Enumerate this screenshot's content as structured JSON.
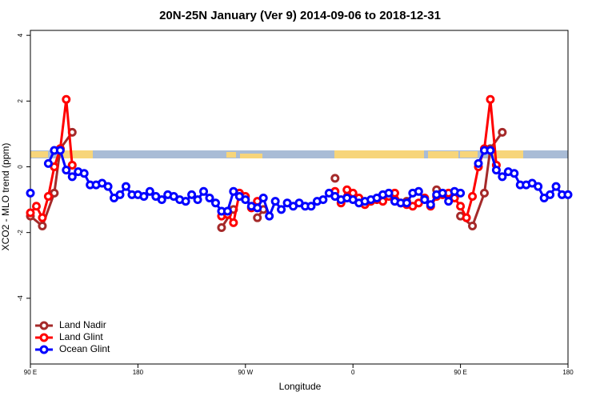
{
  "chart_data": {
    "type": "line",
    "title": "20N-25N January (Ver 9)   2014-09-06 to 2018-12-31",
    "xlabel": "Longitude",
    "ylabel": "XCO2 - MLO trend (ppm)",
    "xlim": [
      90,
      540
    ],
    "ylim": [
      -6,
      4.15
    ],
    "xticks": [
      {
        "value": 90,
        "label": "90 E"
      },
      180,
      {
        "value": 270,
        "label": "90 W"
      },
      {
        "value": 360,
        "label": "0"
      },
      {
        "value": 450,
        "label": "90 E"
      },
      {
        "value": 540,
        "label": "180"
      }
    ],
    "yticks": [
      -4,
      -2,
      0,
      2,
      4
    ],
    "legend": "bottom-left",
    "series": [
      {
        "name": "Land Nadir",
        "color": "#a52a2a",
        "x": [
          90,
          100,
          110,
          115,
          125,
          130,
          250,
          260,
          265,
          280,
          285,
          290,
          345,
          350,
          405,
          410,
          430,
          435,
          450,
          460,
          470,
          475,
          485
        ],
        "values": [
          -1.5,
          -1.8,
          -0.8,
          0.55,
          1.05,
          null,
          -1.85,
          -1.3,
          null,
          -1.55,
          -1.3,
          null,
          -0.35,
          null,
          -1.05,
          null,
          -0.7,
          null,
          -1.5,
          -1.8,
          -0.8,
          0.55,
          1.05
        ]
      },
      {
        "name": "Land Glint",
        "color": "#ff0000",
        "x": [
          90,
          95,
          100,
          105,
          110,
          115,
          120,
          125,
          130,
          250,
          255,
          260,
          265,
          270,
          275,
          280,
          285,
          345,
          350,
          355,
          360,
          365,
          370,
          375,
          380,
          385,
          390,
          395,
          400,
          405,
          410,
          415,
          420,
          425,
          430,
          435,
          440,
          445,
          450,
          455,
          460,
          465,
          470,
          475,
          480
        ],
        "values": [
          -1.4,
          -1.2,
          -1.55,
          -0.9,
          0.0,
          0.55,
          2.05,
          0.05,
          null,
          -1.5,
          -1.45,
          -1.7,
          -0.8,
          -0.9,
          -1.25,
          -1.05,
          null,
          -0.75,
          -1.1,
          -0.7,
          -0.8,
          -0.95,
          -1.15,
          -1.05,
          -1.0,
          -1.05,
          -0.9,
          -0.8,
          -1.1,
          -1.15,
          -1.2,
          -1.1,
          -0.95,
          -1.2,
          -0.9,
          -0.85,
          -0.8,
          -0.95,
          -1.2,
          -1.55,
          -0.9,
          0.0,
          0.55,
          2.05,
          0.05
        ]
      },
      {
        "name": "Ocean Glint",
        "color": "#0000ff",
        "x": [
          90,
          95,
          105,
          110,
          115,
          120,
          125,
          130,
          135,
          140,
          145,
          150,
          155,
          160,
          165,
          170,
          175,
          180,
          185,
          190,
          195,
          200,
          205,
          210,
          215,
          220,
          225,
          230,
          235,
          240,
          245,
          250,
          255,
          260,
          265,
          270,
          275,
          280,
          285,
          290,
          295,
          300,
          305,
          310,
          315,
          320,
          325,
          330,
          335,
          340,
          345,
          350,
          355,
          360,
          365,
          370,
          375,
          380,
          385,
          390,
          395,
          400,
          405,
          410,
          415,
          420,
          425,
          430,
          435,
          440,
          445,
          450,
          455,
          465,
          470,
          475,
          480,
          485,
          490,
          495,
          500,
          505,
          510,
          515,
          520,
          525,
          530,
          535,
          540
        ],
        "values": [
          -0.8,
          null,
          0.1,
          0.5,
          0.5,
          -0.1,
          -0.3,
          -0.15,
          -0.2,
          -0.55,
          -0.55,
          -0.5,
          -0.6,
          -0.95,
          -0.85,
          -0.6,
          -0.85,
          -0.85,
          -0.9,
          -0.75,
          -0.9,
          -1.0,
          -0.85,
          -0.9,
          -1.0,
          -1.05,
          -0.85,
          -1.0,
          -0.75,
          -0.95,
          -1.1,
          -1.35,
          -1.35,
          -0.75,
          -0.9,
          -1.0,
          -1.2,
          -1.25,
          -0.95,
          -1.5,
          -1.05,
          -1.3,
          -1.1,
          -1.2,
          -1.1,
          -1.2,
          -1.2,
          -1.05,
          -1.0,
          -0.8,
          -0.9,
          -1.0,
          -0.95,
          -1.0,
          -1.1,
          -1.05,
          -1.0,
          -0.95,
          -0.85,
          -0.8,
          -1.05,
          -1.1,
          -1.1,
          -0.8,
          -0.75,
          -1.0,
          -1.15,
          -0.85,
          -0.8,
          -1.05,
          -0.75,
          -0.8,
          null,
          0.1,
          0.5,
          0.5,
          -0.1,
          -0.3,
          -0.15,
          -0.2,
          -0.55,
          -0.55,
          -0.5,
          -0.6,
          -0.95,
          -0.85,
          -0.6,
          -0.85,
          -0.85
        ]
      }
    ]
  }
}
